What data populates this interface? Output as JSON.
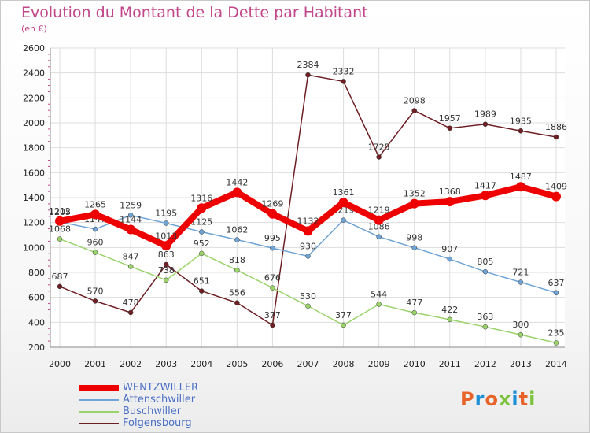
{
  "title": "Evolution du Montant de la Dette par Habitant",
  "subtitle": "(en €)",
  "logo": {
    "text": "Proxiti",
    "colors": [
      "#e8632a",
      "#1f8fd6",
      "#e8632a",
      "#7cc23f",
      "#1f8fd6",
      "#e8632a",
      "#7cc23f"
    ]
  },
  "chart_data": {
    "type": "line",
    "x": [
      "2000",
      "2001",
      "2002",
      "2003",
      "2004",
      "2005",
      "2006",
      "2007",
      "2008",
      "2009",
      "2010",
      "2011",
      "2012",
      "2013",
      "2014"
    ],
    "ylim": [
      200,
      2600
    ],
    "yticks": [
      200,
      400,
      600,
      800,
      1000,
      1200,
      1400,
      1600,
      1800,
      2000,
      2200,
      2400,
      2600
    ],
    "grid": true,
    "legend_position": "bottom-left",
    "series": [
      {
        "name": "Folgensbourg",
        "color": "#6e1f24",
        "values": [
          687,
          570,
          478,
          863,
          651,
          556,
          377,
          2384,
          2332,
          1725,
          2098,
          1957,
          1989,
          1935,
          1886
        ]
      },
      {
        "name": "Buschwiller",
        "color": "#9ad36a",
        "values": [
          1068,
          960,
          847,
          738,
          952,
          818,
          676,
          530,
          377,
          544,
          477,
          422,
          363,
          300,
          235
        ]
      },
      {
        "name": "Attenschwiller",
        "color": "#6fa4d4",
        "values": [
          1205,
          1147,
          1259,
          1195,
          1125,
          1062,
          995,
          930,
          1219,
          1086,
          998,
          907,
          805,
          721,
          637
        ]
      },
      {
        "name": "WENTZWILLER",
        "color": "#ee0000",
        "values": [
          1212,
          1265,
          1144,
          1013,
          1316,
          1442,
          1269,
          1132,
          1361,
          1219,
          1352,
          1368,
          1417,
          1487,
          1409
        ]
      }
    ]
  },
  "legend_order": [
    "WENTZWILLER",
    "Attenschwiller",
    "Buschwiller",
    "Folgensbourg"
  ]
}
